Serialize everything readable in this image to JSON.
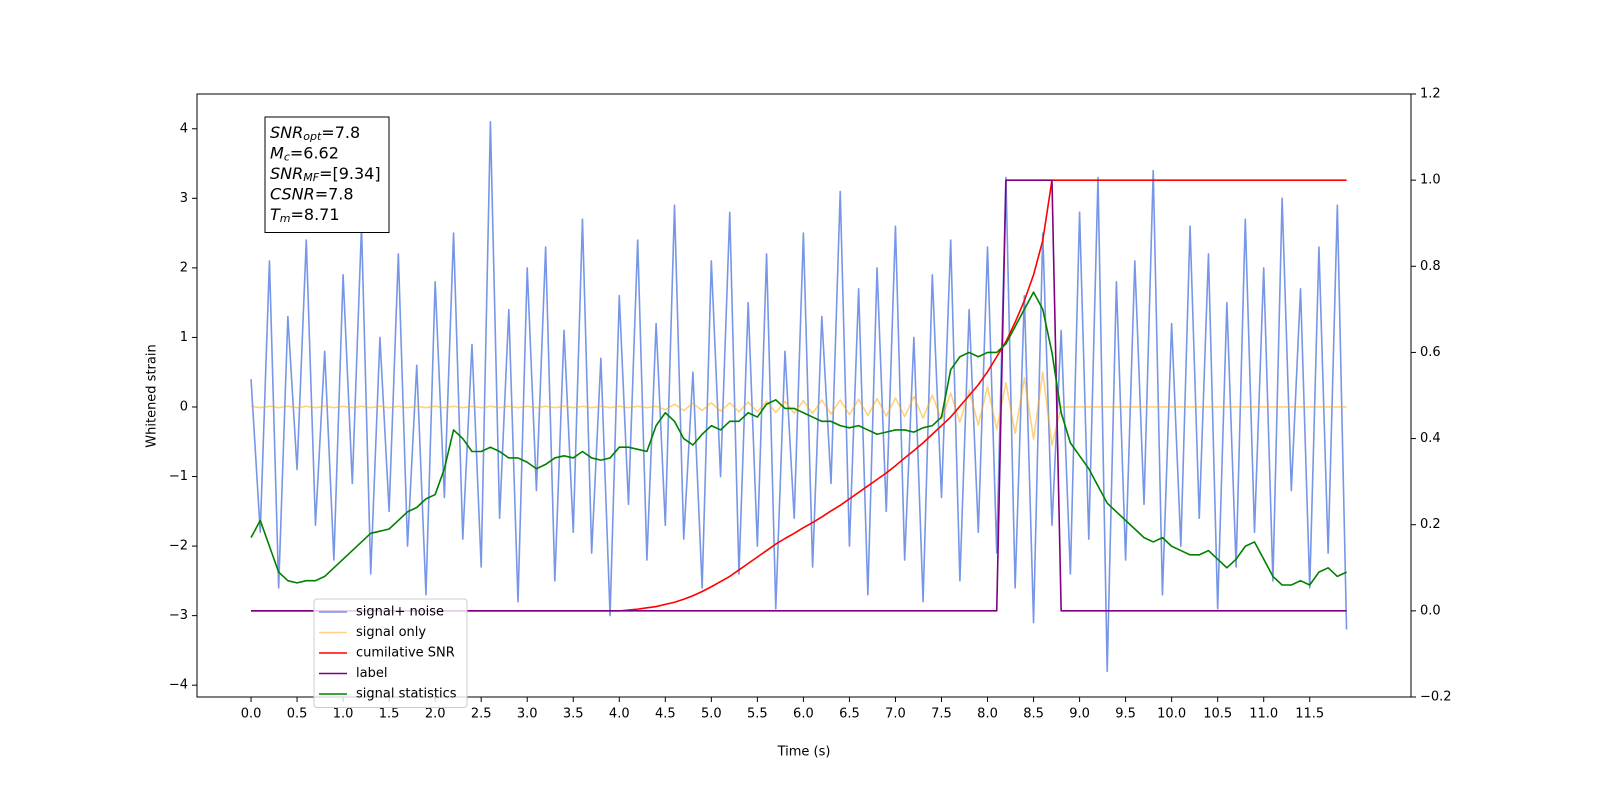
{
  "chart_data": {
    "type": "line",
    "xlabel": "Time (s)",
    "ylabel": "Whitened strain",
    "xlim": [
      -0.587,
      12.6
    ],
    "ylim": [
      -4.17,
      4.5
    ],
    "y2lim": [
      -0.2,
      1.2
    ],
    "xticks": [
      {
        "value": 0,
        "label": "0.0"
      },
      0.5,
      {
        "value": 1,
        "label": "1.0"
      },
      1.5,
      {
        "value": 2,
        "label": "2.0"
      },
      2.5,
      {
        "value": 3,
        "label": "3.0"
      },
      3.5,
      {
        "value": 4,
        "label": "4.0"
      },
      4.5,
      {
        "value": 5,
        "label": "5.0"
      },
      5.5,
      {
        "value": 6,
        "label": "6.0"
      },
      6.5,
      {
        "value": 7,
        "label": "7.0"
      },
      7.5,
      {
        "value": 8,
        "label": "8.0"
      },
      8.5,
      {
        "value": 9,
        "label": "9.0"
      },
      9.5,
      {
        "value": 10,
        "label": "10.0"
      },
      10.5,
      {
        "value": 11,
        "label": "11.0"
      },
      11.5
    ],
    "yticks": [
      {
        "value": -4,
        "label": "−4"
      },
      {
        "value": -3,
        "label": "−3"
      },
      {
        "value": -2,
        "label": "−2"
      },
      {
        "value": -1,
        "label": "−1"
      },
      0,
      1,
      2,
      3,
      4
    ],
    "y2ticks": [
      {
        "value": -0.2,
        "label": "−0.2"
      },
      {
        "value": 0,
        "label": "0.0"
      },
      0.2,
      0.4,
      0.6,
      0.8,
      {
        "value": 1,
        "label": "1.0"
      },
      1.2
    ],
    "legend": "lower left",
    "annotations": [
      {
        "symbol": "SNR",
        "subscript": "opt",
        "text": "=7.8"
      },
      {
        "symbol": "M",
        "subscript": "c",
        "text": "=6.62"
      },
      {
        "symbol": "SNR",
        "subscript": "MF",
        "text": "=[9.34]"
      },
      {
        "symbol": "CSNR",
        "text": "=7.8"
      },
      {
        "symbol": "T",
        "subscript": "m",
        "text": "=8.71"
      }
    ],
    "x": [
      0,
      0.1,
      0.2,
      0.3,
      0.4,
      0.5,
      0.6,
      0.7,
      0.8,
      0.9,
      1,
      1.1,
      1.2,
      1.3,
      1.4,
      1.5,
      1.6,
      1.7,
      1.8,
      1.9,
      2,
      2.1,
      2.2,
      2.3,
      2.4,
      2.5,
      2.6,
      2.7,
      2.8,
      2.9,
      3,
      3.1,
      3.2,
      3.3,
      3.4,
      3.5,
      3.6,
      3.7,
      3.8,
      3.9,
      4,
      4.1,
      4.2,
      4.3,
      4.4,
      4.5,
      4.6,
      4.7,
      4.8,
      4.9,
      5,
      5.1,
      5.2,
      5.3,
      5.4,
      5.5,
      5.6,
      5.7,
      5.8,
      5.9,
      6,
      6.1,
      6.2,
      6.3,
      6.4,
      6.5,
      6.6,
      6.7,
      6.8,
      6.9,
      7,
      7.1,
      7.2,
      7.3,
      7.4,
      7.5,
      7.6,
      7.7,
      7.8,
      7.9,
      8,
      8.1,
      8.2,
      8.3,
      8.4,
      8.5,
      8.6,
      8.7,
      8.8,
      8.9,
      9,
      9.1,
      9.2,
      9.3,
      9.4,
      9.5,
      9.6,
      9.7,
      9.8,
      9.9,
      10,
      10.1,
      10.2,
      10.3,
      10.4,
      10.5,
      10.6,
      10.7,
      10.8,
      10.9,
      11,
      11.1,
      11.2,
      11.3,
      11.4,
      11.5,
      11.6,
      11.7,
      11.8,
      11.9
    ],
    "series": [
      {
        "name": "signal+ noise",
        "color": "#7090e6",
        "opacity": 0.95,
        "axis": "y",
        "values": [
          0.4,
          -1.8,
          2.1,
          -2.6,
          1.3,
          -0.9,
          2.4,
          -1.7,
          0.8,
          -2.2,
          1.9,
          -1.1,
          2.6,
          -2.4,
          1.0,
          -1.5,
          2.2,
          -2.0,
          0.6,
          -2.7,
          1.8,
          -1.3,
          2.5,
          -1.9,
          0.9,
          -2.3,
          4.1,
          -1.6,
          1.4,
          -2.8,
          2.0,
          -1.2,
          2.3,
          -2.5,
          1.1,
          -1.8,
          2.7,
          -2.1,
          0.7,
          -3.0,
          1.6,
          -1.4,
          2.4,
          -2.2,
          1.2,
          -1.7,
          2.9,
          -1.9,
          0.5,
          -2.6,
          2.1,
          -1.0,
          2.8,
          -2.4,
          1.5,
          -2.0,
          2.2,
          -2.9,
          0.8,
          -1.6,
          2.5,
          -2.3,
          1.3,
          -1.1,
          3.1,
          -2.0,
          1.7,
          -2.7,
          2.0,
          -1.5,
          2.6,
          -2.2,
          1.0,
          -2.8,
          1.9,
          -1.3,
          2.4,
          -2.5,
          1.4,
          -1.8,
          2.3,
          -2.1,
          3.3,
          -2.6,
          1.6,
          -3.1,
          2.5,
          -1.7,
          1.1,
          -2.4,
          2.8,
          -1.9,
          3.3,
          -3.8,
          1.8,
          -2.2,
          2.1,
          -1.4,
          3.4,
          -2.7,
          1.2,
          -2.0,
          2.6,
          -1.6,
          2.2,
          -2.9,
          1.5,
          -2.3,
          2.7,
          -1.8,
          2.0,
          -2.5,
          3.0,
          -1.2,
          1.7,
          -2.6,
          2.3,
          -2.1,
          2.9,
          -3.2
        ]
      },
      {
        "name": "signal only",
        "color": "#ffa500",
        "opacity": 0.5,
        "axis": "y",
        "values": [
          0.01,
          -0.01,
          0.01,
          -0.01,
          0.01,
          -0.01,
          0.01,
          -0.01,
          0.01,
          -0.01,
          0.01,
          -0.01,
          0.01,
          -0.01,
          0.01,
          -0.01,
          0.01,
          -0.01,
          0.01,
          -0.01,
          0.01,
          -0.01,
          0.01,
          -0.01,
          0.01,
          -0.01,
          0.01,
          -0.01,
          0.01,
          -0.01,
          0.01,
          -0.01,
          0.01,
          -0.01,
          0.01,
          -0.01,
          0.01,
          -0.01,
          0.01,
          -0.01,
          0.01,
          -0.01,
          0.01,
          -0.01,
          0.01,
          -0.04,
          0.04,
          -0.05,
          0.05,
          -0.05,
          0.06,
          -0.06,
          0.06,
          -0.07,
          0.07,
          -0.07,
          0.08,
          -0.08,
          0.08,
          -0.09,
          0.09,
          -0.09,
          0.1,
          -0.1,
          0.1,
          -0.11,
          0.11,
          -0.12,
          0.12,
          -0.13,
          0.13,
          -0.14,
          0.15,
          -0.16,
          0.17,
          -0.18,
          0.2,
          -0.22,
          0.24,
          -0.26,
          0.29,
          -0.32,
          0.35,
          -0.38,
          0.42,
          -0.46,
          0.5,
          -0.55,
          0,
          0,
          0,
          0,
          0,
          0,
          0,
          0,
          0,
          0,
          0,
          0,
          0,
          0,
          0,
          0,
          0,
          0,
          0,
          0,
          0,
          0,
          0,
          0,
          0,
          0,
          0,
          0,
          0,
          0,
          0,
          0
        ]
      },
      {
        "name": "cumilative SNR",
        "color": "#ff0000",
        "opacity": 1,
        "axis": "y2",
        "values": [
          0,
          0,
          0,
          0,
          0,
          0,
          0,
          0,
          0,
          0,
          0,
          0,
          0,
          0,
          0,
          0,
          0,
          0,
          0,
          0,
          0,
          0,
          0,
          0,
          0,
          0,
          0,
          0,
          0,
          0,
          0,
          0,
          0,
          0,
          0,
          0,
          0,
          0,
          0,
          0,
          0,
          0.002,
          0.004,
          0.007,
          0.01,
          0.015,
          0.02,
          0.027,
          0.035,
          0.045,
          0.056,
          0.068,
          0.08,
          0.095,
          0.11,
          0.125,
          0.14,
          0.155,
          0.168,
          0.18,
          0.193,
          0.205,
          0.218,
          0.232,
          0.245,
          0.26,
          0.275,
          0.29,
          0.305,
          0.32,
          0.337,
          0.355,
          0.372,
          0.39,
          0.41,
          0.43,
          0.45,
          0.475,
          0.5,
          0.525,
          0.555,
          0.59,
          0.625,
          0.67,
          0.72,
          0.78,
          0.86,
          1,
          1,
          1,
          1,
          1,
          1,
          1,
          1,
          1,
          1,
          1,
          1,
          1,
          1,
          1,
          1,
          1,
          1,
          1,
          1,
          1,
          1,
          1,
          1,
          1,
          1,
          1,
          1,
          1,
          1,
          1,
          1,
          1
        ]
      },
      {
        "name": "label",
        "color": "#800080",
        "opacity": 1,
        "axis": "y2",
        "values": [
          0,
          0,
          0,
          0,
          0,
          0,
          0,
          0,
          0,
          0,
          0,
          0,
          0,
          0,
          0,
          0,
          0,
          0,
          0,
          0,
          0,
          0,
          0,
          0,
          0,
          0,
          0,
          0,
          0,
          0,
          0,
          0,
          0,
          0,
          0,
          0,
          0,
          0,
          0,
          0,
          0,
          0,
          0,
          0,
          0,
          0,
          0,
          0,
          0,
          0,
          0,
          0,
          0,
          0,
          0,
          0,
          0,
          0,
          0,
          0,
          0,
          0,
          0,
          0,
          0,
          0,
          0,
          0,
          0,
          0,
          0,
          0,
          0,
          0,
          0,
          0,
          0,
          0,
          0,
          0,
          0,
          0,
          1,
          1,
          1,
          1,
          1,
          1,
          0,
          0,
          0,
          0,
          0,
          0,
          0,
          0,
          0,
          0,
          0,
          0,
          0,
          0,
          0,
          0,
          0,
          0,
          0,
          0,
          0,
          0,
          0,
          0,
          0,
          0,
          0,
          0,
          0,
          0,
          0,
          0
        ]
      },
      {
        "name": "signal statistics",
        "color": "#008000",
        "opacity": 1,
        "axis": "y2",
        "values": [
          0.17,
          0.21,
          0.15,
          0.09,
          0.07,
          0.065,
          0.07,
          0.07,
          0.08,
          0.1,
          0.12,
          0.14,
          0.16,
          0.18,
          0.185,
          0.19,
          0.21,
          0.23,
          0.24,
          0.26,
          0.27,
          0.33,
          0.42,
          0.4,
          0.37,
          0.37,
          0.38,
          0.37,
          0.355,
          0.355,
          0.345,
          0.33,
          0.34,
          0.355,
          0.36,
          0.355,
          0.37,
          0.355,
          0.35,
          0.355,
          0.38,
          0.38,
          0.375,
          0.37,
          0.43,
          0.46,
          0.44,
          0.4,
          0.385,
          0.41,
          0.43,
          0.42,
          0.44,
          0.44,
          0.46,
          0.45,
          0.48,
          0.49,
          0.47,
          0.47,
          0.46,
          0.45,
          0.44,
          0.44,
          0.43,
          0.425,
          0.43,
          0.42,
          0.41,
          0.415,
          0.42,
          0.42,
          0.415,
          0.425,
          0.43,
          0.45,
          0.56,
          0.59,
          0.6,
          0.59,
          0.6,
          0.6,
          0.62,
          0.66,
          0.7,
          0.74,
          0.7,
          0.6,
          0.46,
          0.39,
          0.36,
          0.33,
          0.29,
          0.25,
          0.23,
          0.21,
          0.19,
          0.17,
          0.16,
          0.17,
          0.15,
          0.14,
          0.13,
          0.13,
          0.14,
          0.12,
          0.1,
          0.12,
          0.15,
          0.16,
          0.12,
          0.08,
          0.06,
          0.06,
          0.07,
          0.06,
          0.09,
          0.1,
          0.08,
          0.09
        ]
      }
    ]
  }
}
